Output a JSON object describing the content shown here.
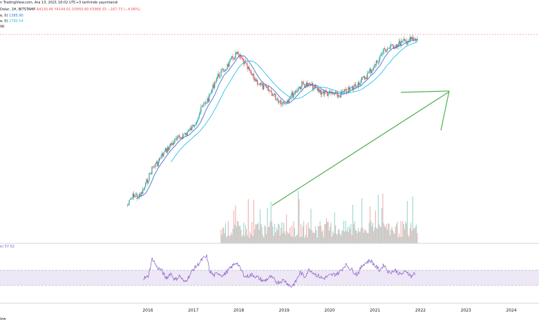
{
  "header": {
    "line1": "n TradingView.com, Ara 13, 2021 16:02 UTC+3 tarihinde yayımlandı",
    "line2_prefix": "Dolar, 1H, BITSTAMP",
    "o": "A4130.46",
    "h": "Y4144.01",
    "l": "D3950.80",
    "c": "K3968.33",
    "chg": "−167.73 (−4.06%)",
    "ma1": "e, 0)",
    "ma1_val": "1385.90",
    "ma2": "e, 0)",
    "ma2_val": "2780.54",
    "extra": "0K"
  },
  "rsi": {
    "label": "e)",
    "value": "57.52"
  },
  "footer": "iew",
  "colors": {
    "up": "#26a69a",
    "down": "#ef5350",
    "ma_fast": "#3f6fd9",
    "ma_slow": "#29c0e8",
    "arrow": "#4caf50",
    "rsi": "#7e57c2",
    "rsi_band": "#ede7f6"
  },
  "chart_data": {
    "type": "line",
    "x_ticks": [
      "2016",
      "2017",
      "2018",
      "2019",
      "2020",
      "2021",
      "2022",
      "2023",
      "2024"
    ],
    "price_shape": [
      [
        2015.55,
        0.92
      ],
      [
        2015.6,
        0.9
      ],
      [
        2015.7,
        0.86
      ],
      [
        2015.8,
        0.88
      ],
      [
        2015.9,
        0.84
      ],
      [
        2016.0,
        0.78
      ],
      [
        2016.1,
        0.72
      ],
      [
        2016.2,
        0.7
      ],
      [
        2016.3,
        0.66
      ],
      [
        2016.5,
        0.6
      ],
      [
        2016.7,
        0.56
      ],
      [
        2016.9,
        0.53
      ],
      [
        2017.0,
        0.5
      ],
      [
        2017.2,
        0.4
      ],
      [
        2017.35,
        0.35
      ],
      [
        2017.5,
        0.25
      ],
      [
        2017.7,
        0.2
      ],
      [
        2017.85,
        0.15
      ],
      [
        2017.95,
        0.12
      ],
      [
        2018.1,
        0.16
      ],
      [
        2018.3,
        0.24
      ],
      [
        2018.5,
        0.29
      ],
      [
        2018.7,
        0.32
      ],
      [
        2018.85,
        0.36
      ],
      [
        2019.0,
        0.38
      ],
      [
        2019.2,
        0.33
      ],
      [
        2019.4,
        0.28
      ],
      [
        2019.6,
        0.29
      ],
      [
        2019.8,
        0.32
      ],
      [
        2020.0,
        0.33
      ],
      [
        2020.2,
        0.34
      ],
      [
        2020.5,
        0.3
      ],
      [
        2020.8,
        0.24
      ],
      [
        2021.0,
        0.18
      ],
      [
        2021.2,
        0.1
      ],
      [
        2021.4,
        0.08
      ],
      [
        2021.6,
        0.06
      ],
      [
        2021.8,
        0.045
      ],
      [
        2021.9,
        0.05
      ]
    ],
    "rsi_values": [
      [
        2015.9,
        45
      ],
      [
        2016.0,
        48
      ],
      [
        2016.1,
        82
      ],
      [
        2016.2,
        65
      ],
      [
        2016.3,
        60
      ],
      [
        2016.4,
        45
      ],
      [
        2016.5,
        55
      ],
      [
        2016.6,
        42
      ],
      [
        2016.7,
        50
      ],
      [
        2016.8,
        38
      ],
      [
        2016.9,
        48
      ],
      [
        2017.0,
        62
      ],
      [
        2017.1,
        70
      ],
      [
        2017.2,
        80
      ],
      [
        2017.3,
        85
      ],
      [
        2017.35,
        60
      ],
      [
        2017.45,
        50
      ],
      [
        2017.55,
        55
      ],
      [
        2017.65,
        50
      ],
      [
        2017.8,
        62
      ],
      [
        2017.95,
        75
      ],
      [
        2018.05,
        60
      ],
      [
        2018.15,
        48
      ],
      [
        2018.3,
        52
      ],
      [
        2018.45,
        45
      ],
      [
        2018.55,
        40
      ],
      [
        2018.7,
        48
      ],
      [
        2018.85,
        38
      ],
      [
        2019.0,
        42
      ],
      [
        2019.15,
        30
      ],
      [
        2019.25,
        38
      ],
      [
        2019.35,
        56
      ],
      [
        2019.45,
        48
      ],
      [
        2019.55,
        62
      ],
      [
        2019.7,
        52
      ],
      [
        2019.85,
        45
      ],
      [
        2020.0,
        50
      ],
      [
        2020.2,
        55
      ],
      [
        2020.35,
        70
      ],
      [
        2020.5,
        60
      ],
      [
        2020.6,
        52
      ],
      [
        2020.75,
        72
      ],
      [
        2020.9,
        78
      ],
      [
        2021.0,
        68
      ],
      [
        2021.1,
        60
      ],
      [
        2021.2,
        70
      ],
      [
        2021.3,
        56
      ],
      [
        2021.45,
        60
      ],
      [
        2021.55,
        52
      ],
      [
        2021.7,
        58
      ],
      [
        2021.8,
        48
      ],
      [
        2021.85,
        54
      ],
      [
        2021.9,
        50
      ]
    ]
  }
}
